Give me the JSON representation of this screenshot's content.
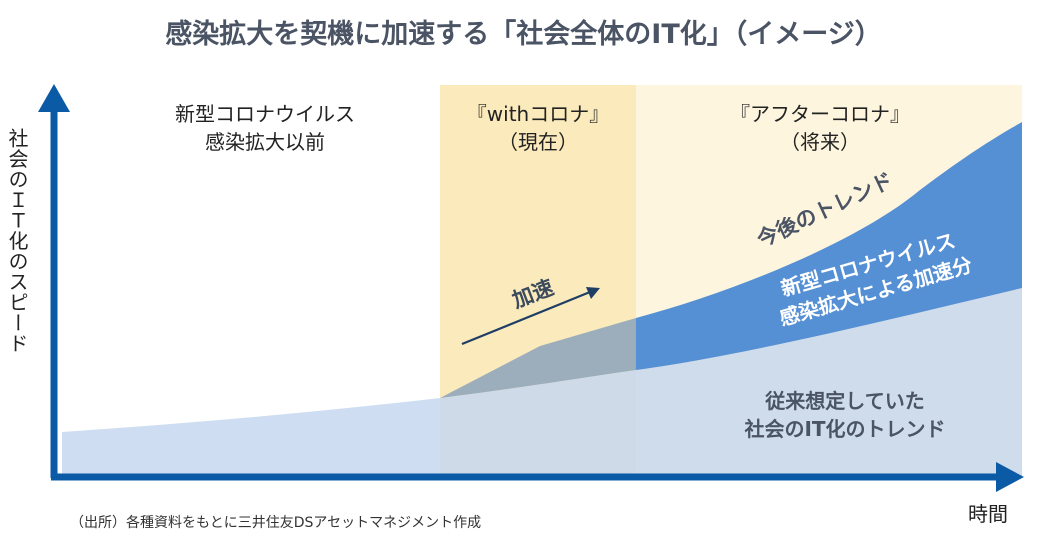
{
  "title": "感染拡大を契機に加速する「社会全体のIT化」（イメージ）",
  "axes": {
    "y_label": "社会のＩＴ化のスピード",
    "x_label": "時間"
  },
  "eras": [
    {
      "line1": "新型コロナウイルス",
      "line2": "感染拡大以前"
    },
    {
      "line1": "『withコロナ』",
      "line2": "（現在）"
    },
    {
      "line1": "『アフターコロナ』",
      "line2": "（将来）"
    }
  ],
  "annotations": {
    "acceleration": "加速",
    "future_trend": "今後のトレンド",
    "covid_boost_line1": "新型コロナウイルス",
    "covid_boost_line2": "感染拡大による加速分",
    "baseline_line1": "従来想定していた",
    "baseline_line2": "社会のIT化のトレンド"
  },
  "source_note": "（出所）各種資料をもとに三井住友DSアセットマネジメント作成",
  "colors": {
    "axis": "#0b5aa5",
    "baseline_fill": "#c6d7ee",
    "boost_fill": "#558fd4",
    "with_corona_band": "#fbeabb",
    "after_corona_band": "#fdf5de",
    "overlap_fill": "#9caebb",
    "text_dark": "#4a5464",
    "text_white": "#ffffff"
  }
}
